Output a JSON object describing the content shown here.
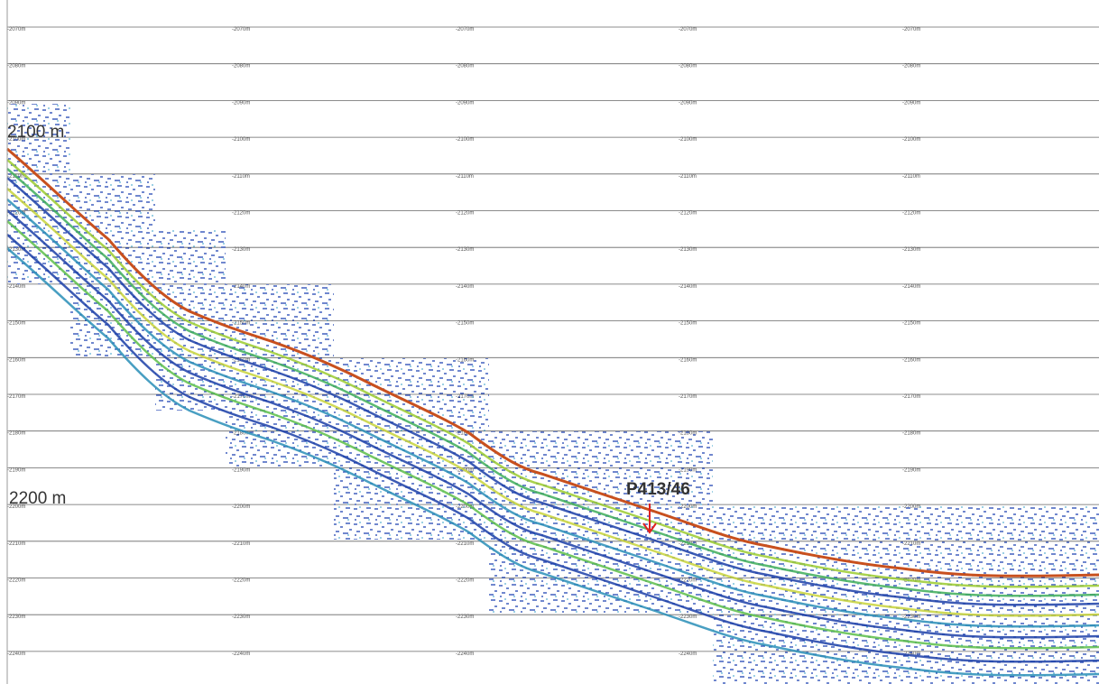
{
  "depth_labels": [
    "-2070m",
    "-2080m",
    "-2090m",
    "-2100m",
    "-2110m",
    "-2120m",
    "-2130m",
    "-2140m",
    "-2150m",
    "-2160m",
    "-2170m",
    "-2180m",
    "-2190m",
    "-2200m",
    "-2210m",
    "-2220m",
    "-2230m",
    "-2240m"
  ],
  "depth_markers": [
    "2100 m",
    "2200 m"
  ],
  "annotation": "P413/46"
}
